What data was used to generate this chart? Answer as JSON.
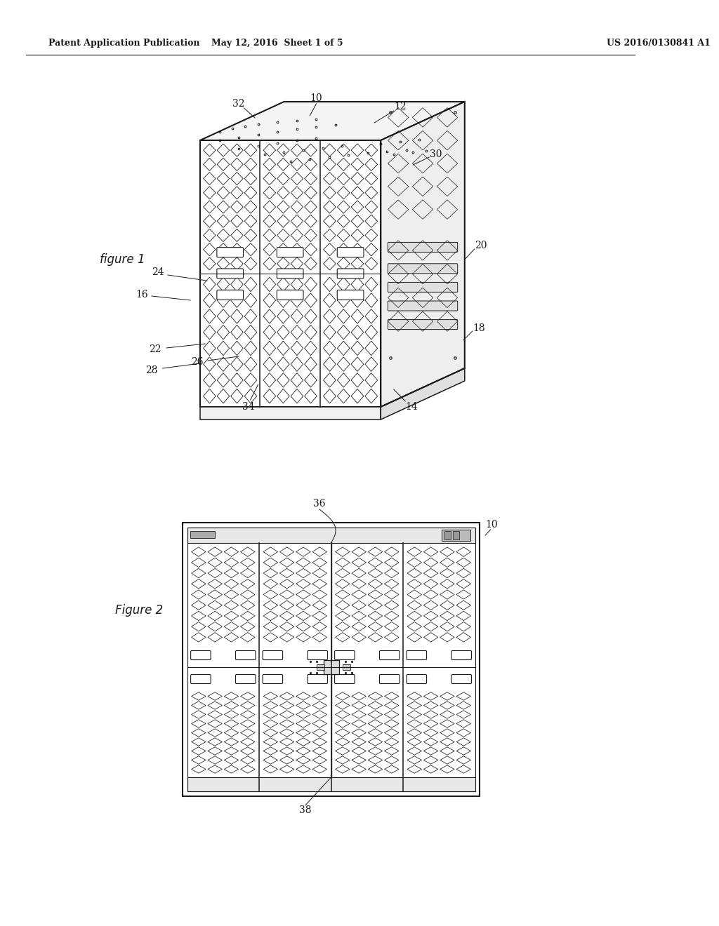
{
  "bg_color": "#ffffff",
  "header_text_left": "Patent Application Publication",
  "header_text_mid": "May 12, 2016  Sheet 1 of 5",
  "header_text_right": "US 2016/0130841 A1",
  "line_color": "#1a1a1a",
  "text_color": "#1a1a1a",
  "fig1_label": "figure 1",
  "fig2_label": "Figure 2"
}
